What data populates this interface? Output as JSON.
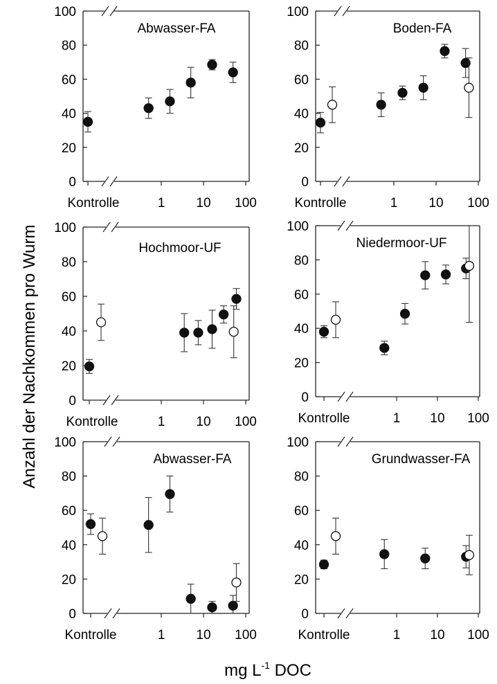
{
  "figure": {
    "ylabel": "Anzahl der Nachkommen pro Wurm",
    "xlabel": "mg L",
    "xlabel_sup": "-1",
    "xlabel_tail": " DOC"
  },
  "chart_data": [
    {
      "type": "scatter",
      "title": "Abwasser-FA",
      "xscale": "log",
      "control_label": "Kontrolle",
      "x_ticks": [
        "1",
        "10",
        "100"
      ],
      "y_ticks": [
        "0",
        "20",
        "40",
        "60",
        "80",
        "100"
      ],
      "ylim": [
        0,
        100
      ],
      "series": [
        {
          "fill": "filled",
          "points": [
            {
              "x": "Kontrolle",
              "y": 35,
              "err": 6
            },
            {
              "x": 0.5,
              "y": 43,
              "err": 6
            },
            {
              "x": 1.6,
              "y": 47,
              "err": 7
            },
            {
              "x": 5,
              "y": 58,
              "err": 9
            },
            {
              "x": 16,
              "y": 68.5,
              "err": 3
            },
            {
              "x": 50,
              "y": 64,
              "err": 6
            }
          ]
        }
      ]
    },
    {
      "type": "scatter",
      "title": "Boden-FA",
      "xscale": "log",
      "control_label": "Kontrolle",
      "x_ticks": [
        "1",
        "10",
        "100"
      ],
      "y_ticks": [
        "0",
        "20",
        "40",
        "60",
        "80",
        "100"
      ],
      "ylim": [
        0,
        100
      ],
      "series": [
        {
          "fill": "filled",
          "points": [
            {
              "x": "Kontrolle",
              "y": 34.5,
              "err": 6
            },
            {
              "x": 0.5,
              "y": 45,
              "err": 7
            },
            {
              "x": 1.6,
              "y": 52,
              "err": 4
            },
            {
              "x": 5,
              "y": 55,
              "err": 7
            },
            {
              "x": 16,
              "y": 76.5,
              "err": 4
            },
            {
              "x": 50,
              "y": 69.5,
              "err": 8.5
            }
          ]
        },
        {
          "fill": "open",
          "points": [
            {
              "x": "Kontrolle",
              "y": 45,
              "err": 10.5
            },
            {
              "x": 60,
              "y": 55,
              "err": 17.5
            }
          ]
        }
      ]
    },
    {
      "type": "scatter",
      "title": "Hochmoor-UF",
      "xscale": "log",
      "control_label": "Kontrolle",
      "x_ticks": [
        "1",
        "10",
        "100"
      ],
      "y_ticks": [
        "0",
        "20",
        "40",
        "60",
        "80",
        "100"
      ],
      "ylim": [
        0,
        100
      ],
      "series": [
        {
          "fill": "filled",
          "points": [
            {
              "x": "Kontrolle",
              "y": 19.5,
              "err": 4
            },
            {
              "x": 3.5,
              "y": 39,
              "err": 11
            },
            {
              "x": 7.5,
              "y": 39,
              "err": 7
            },
            {
              "x": 16,
              "y": 41,
              "err": 11
            },
            {
              "x": 30,
              "y": 49.5,
              "err": 5
            },
            {
              "x": 60,
              "y": 58.5,
              "err": 6
            }
          ]
        },
        {
          "fill": "open",
          "points": [
            {
              "x": "Kontrolle",
              "y": 45,
              "err": 10.5
            },
            {
              "x": 52,
              "y": 39.5,
              "err": 15
            }
          ]
        }
      ]
    },
    {
      "type": "scatter",
      "title": "Niedermoor-UF",
      "xscale": "log",
      "control_label": "Kontrolle",
      "x_ticks": [
        "1",
        "10",
        "100"
      ],
      "y_ticks": [
        "0",
        "20",
        "40",
        "60",
        "80",
        "100"
      ],
      "ylim": [
        0,
        100
      ],
      "series": [
        {
          "fill": "filled",
          "points": [
            {
              "x": "Kontrolle",
              "y": 38,
              "err": 3.5
            },
            {
              "x": 0.5,
              "y": 28.5,
              "err": 4
            },
            {
              "x": 1.6,
              "y": 48.5,
              "err": 6
            },
            {
              "x": 5,
              "y": 71,
              "err": 8
            },
            {
              "x": 16,
              "y": 71.5,
              "err": 5.5
            },
            {
              "x": 50,
              "y": 75,
              "err": 6
            }
          ]
        },
        {
          "fill": "open",
          "points": [
            {
              "x": "Kontrolle",
              "y": 45,
              "err": 10.5
            },
            {
              "x": 60,
              "y": 76.5,
              "err": 33
            }
          ]
        }
      ]
    },
    {
      "type": "scatter",
      "title": "Abwasser-FA",
      "xscale": "log",
      "control_label": "Kontrolle",
      "x_ticks": [
        "1",
        "10",
        "100"
      ],
      "y_ticks": [
        "0",
        "20",
        "40",
        "60",
        "80",
        "100"
      ],
      "ylim": [
        0,
        100
      ],
      "series": [
        {
          "fill": "filled",
          "points": [
            {
              "x": "Kontrolle",
              "y": 52,
              "err": 6
            },
            {
              "x": 0.5,
              "y": 51.5,
              "err": 16
            },
            {
              "x": 1.6,
              "y": 69.5,
              "err": 10.5
            },
            {
              "x": 5,
              "y": 8.5,
              "err": 8.5
            },
            {
              "x": 16,
              "y": 3.5,
              "err": 3.5
            },
            {
              "x": 50,
              "y": 4.5,
              "err": 6
            }
          ]
        },
        {
          "fill": "open",
          "points": [
            {
              "x": "Kontrolle",
              "y": 45,
              "err": 10.5
            },
            {
              "x": 60,
              "y": 18,
              "err": 11
            }
          ]
        }
      ]
    },
    {
      "type": "scatter",
      "title": "Grundwasser-FA",
      "xscale": "log",
      "control_label": "Kontrolle",
      "x_ticks": [
        "1",
        "10",
        "100"
      ],
      "y_ticks": [
        "0",
        "20",
        "40",
        "60",
        "80",
        "100"
      ],
      "ylim": [
        0,
        100
      ],
      "series": [
        {
          "fill": "filled",
          "points": [
            {
              "x": "Kontrolle",
              "y": 28.5,
              "err": 2.5
            },
            {
              "x": 0.5,
              "y": 34.5,
              "err": 8.5
            },
            {
              "x": 5,
              "y": 32,
              "err": 6
            },
            {
              "x": 50,
              "y": 33,
              "err": 6.5
            }
          ]
        },
        {
          "fill": "open",
          "points": [
            {
              "x": "Kontrolle",
              "y": 45,
              "err": 10.5
            },
            {
              "x": 60,
              "y": 34,
              "err": 11.5
            }
          ]
        }
      ]
    }
  ]
}
